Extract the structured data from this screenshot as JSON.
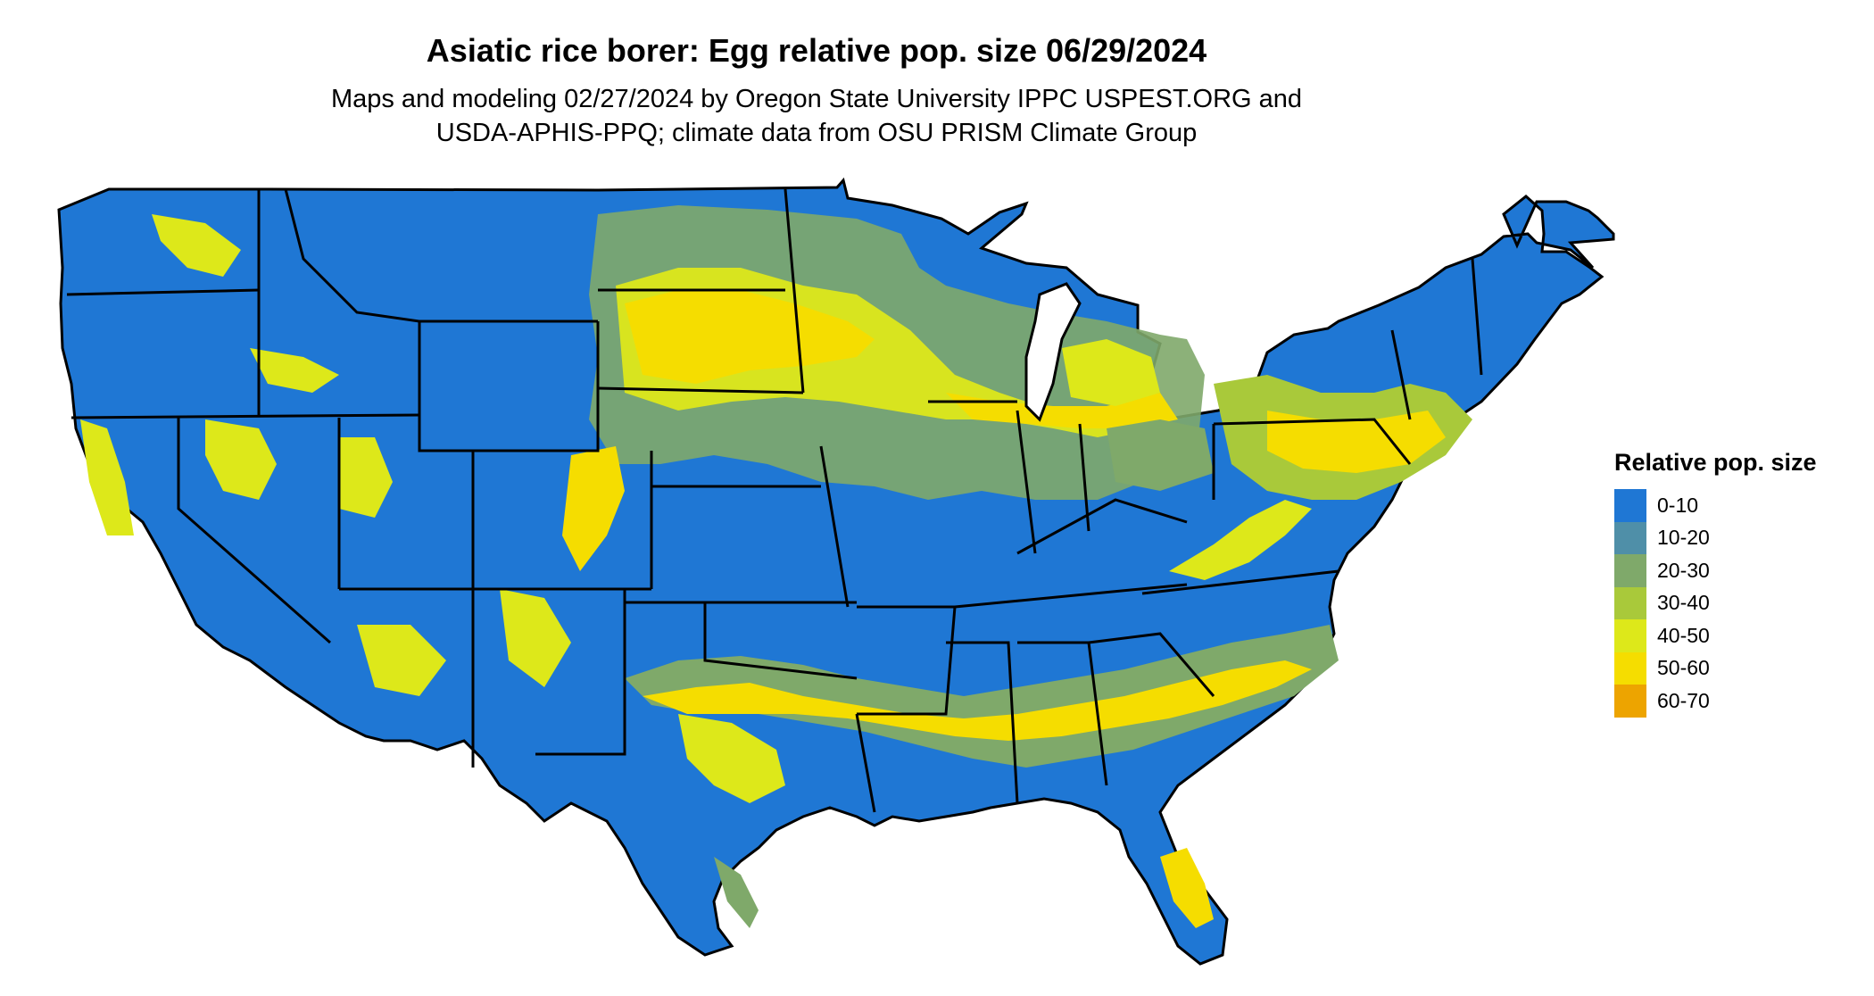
{
  "title": "Asiatic rice borer: Egg relative pop. size 06/29/2024",
  "subtitle_line1": "Maps and modeling 02/27/2024 by Oregon State University IPPC USPEST.ORG and",
  "subtitle_line2": "USDA-APHIS-PPQ; climate data from OSU PRISM Climate Group",
  "legend": {
    "title": "Relative pop. size",
    "items": [
      {
        "label": "0-10",
        "color": "#1f77d4"
      },
      {
        "label": "10-20",
        "color": "#4f8fa8"
      },
      {
        "label": "20-30",
        "color": "#7fa96a"
      },
      {
        "label": "30-40",
        "color": "#a9c93a"
      },
      {
        "label": "40-50",
        "color": "#dde81a"
      },
      {
        "label": "50-60",
        "color": "#f5dd00"
      },
      {
        "label": "60-70",
        "color": "#eda400"
      }
    ]
  },
  "map": {
    "region": "contiguous-united-states",
    "boundary_color": "#000000",
    "dominant_class": "0-10"
  }
}
